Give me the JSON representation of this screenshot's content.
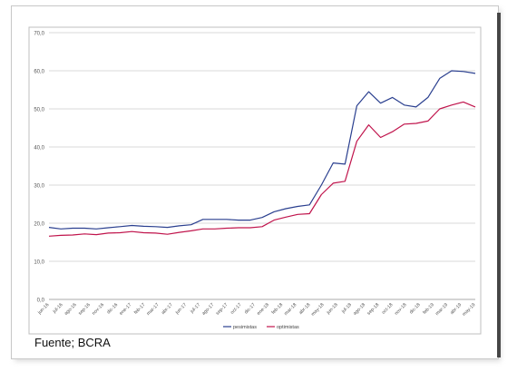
{
  "source_note": "Fuente; BCRA",
  "colors": {
    "pesimistas": "#2a3f8f",
    "optimistas": "#c0144c",
    "grid": "#d9d9d9",
    "axis_text": "#555555"
  },
  "chart_data": {
    "type": "line",
    "title": "",
    "xlabel": "",
    "ylabel": "",
    "ylim": [
      0,
      70
    ],
    "yticks": [
      "0,0",
      "10,0",
      "20,0",
      "30,0",
      "40,0",
      "50,0",
      "60,0",
      "70,0"
    ],
    "grid": true,
    "legend_position": "bottom-center",
    "categories": [
      "jun-16",
      "jul-16",
      "ago-16",
      "sep-16",
      "oct-16",
      "nov-16",
      "dic-16",
      "ene-17",
      "feb-17",
      "mar-17",
      "abr-17",
      "may-17",
      "jun-17",
      "jul-17",
      "ago-17",
      "sep-17",
      "oct-17",
      "nov-17",
      "dic-17",
      "ene-18",
      "feb-18",
      "mar-18",
      "abr-18",
      "may-18",
      "jun-18",
      "jul-18",
      "ago-18",
      "sep-18",
      "oct-18",
      "nov-18",
      "dic-18",
      "ene-19",
      "feb-19",
      "mar-19",
      "abr-19",
      "may-19",
      "jun-19"
    ],
    "x_tick_labels": [
      "jun-16",
      "jul-16",
      "ago-16",
      "sep-16",
      "nov-16",
      "dic-16",
      "ene-17",
      "feb-17",
      "mar-17",
      "abr-17",
      "jun-17",
      "jul-17",
      "ago-17",
      "sep-17",
      "oct-17",
      "dic-17",
      "ene-18",
      "feb-18",
      "mar-18",
      "abr-18",
      "may-18",
      "jun-18",
      "jul-18",
      "ago-18",
      "sep-18",
      "oct-18",
      "nov-18",
      "dic-18",
      "feb-19",
      "mar-19",
      "abr-19",
      "may-19"
    ],
    "series": [
      {
        "name": "pesimistas",
        "values": [
          18.9,
          18.5,
          18.7,
          18.7,
          18.5,
          18.8,
          19.1,
          19.4,
          19.2,
          19.1,
          18.9,
          19.3,
          19.6,
          21.0,
          21.0,
          21.0,
          20.8,
          20.8,
          21.5,
          23.0,
          23.8,
          24.4,
          24.8,
          30.0,
          35.8,
          35.5,
          50.8,
          54.5,
          51.5,
          53.0,
          51.0,
          50.5,
          53.0,
          58.0,
          60.0,
          59.8,
          59.3
        ]
      },
      {
        "name": "optimistas",
        "values": [
          16.6,
          16.8,
          16.9,
          17.2,
          17.0,
          17.4,
          17.5,
          17.8,
          17.5,
          17.4,
          17.1,
          17.6,
          18.0,
          18.5,
          18.5,
          18.7,
          18.8,
          18.8,
          19.1,
          20.8,
          21.6,
          22.3,
          22.5,
          27.5,
          30.5,
          31.0,
          41.5,
          45.8,
          42.5,
          44.0,
          46.0,
          46.2,
          46.8,
          50.0,
          51.0,
          51.8,
          50.5
        ]
      }
    ]
  }
}
